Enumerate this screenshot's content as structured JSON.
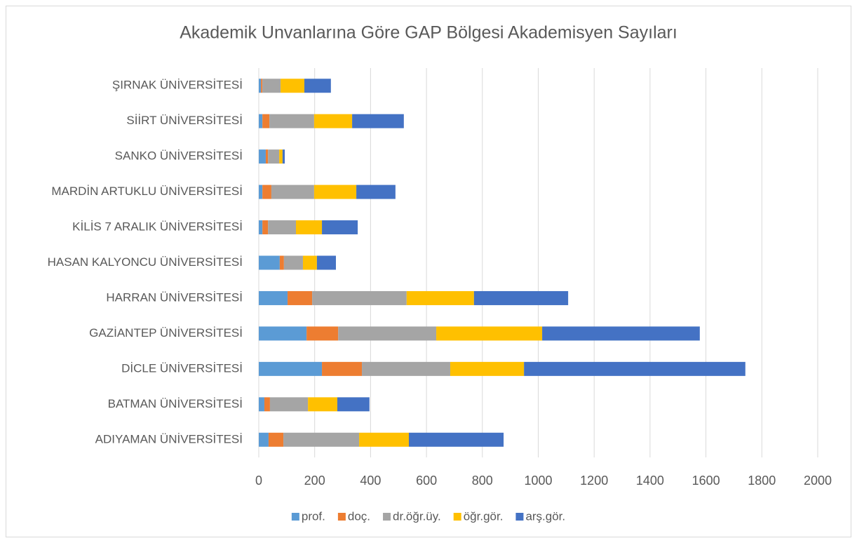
{
  "chart_data": {
    "type": "bar",
    "orientation": "horizontal",
    "stacked": true,
    "title": "Akademik Unvanlarına Göre GAP Bölgesi Akademisyen Sayıları",
    "categories": [
      "ADIYAMAN ÜNİVERSİTESİ",
      "BATMAN ÜNİVERSİTESİ",
      "DİCLE ÜNİVERSİTESİ",
      "GAZİANTEP ÜNİVERSİTESİ",
      "HARRAN ÜNİVERSİTESİ",
      "HASAN KALYONCU ÜNİVERSİTESİ",
      "KİLİS 7 ARALIK ÜNİVERSİTESİ",
      "MARDİN ARTUKLU ÜNİVERSİTESİ",
      "SANKO ÜNİVERSİTESİ",
      "SİİRT ÜNİVERSİTESİ",
      "ŞIRNAK ÜNİVERSİTESİ"
    ],
    "series": [
      {
        "name": "prof.",
        "color": "#5b9bd5",
        "values": [
          35,
          20,
          226,
          171,
          103,
          75,
          13,
          13,
          25,
          13,
          8
        ]
      },
      {
        "name": "doç.",
        "color": "#ed7d31",
        "values": [
          53,
          20,
          143,
          113,
          88,
          15,
          20,
          32,
          8,
          25,
          5
        ]
      },
      {
        "name": "dr.öğr.üy.",
        "color": "#a5a5a5",
        "values": [
          271,
          136,
          316,
          351,
          338,
          68,
          100,
          153,
          40,
          160,
          65
        ]
      },
      {
        "name": "öğr.gör.",
        "color": "#ffc000",
        "values": [
          178,
          105,
          264,
          379,
          241,
          50,
          93,
          151,
          12,
          136,
          85
        ]
      },
      {
        "name": "arş.gör.",
        "color": "#4472c4",
        "values": [
          339,
          115,
          792,
          564,
          337,
          68,
          128,
          140,
          8,
          185,
          95
        ]
      }
    ],
    "xlim": [
      0,
      2000
    ],
    "xticks": [
      0,
      200,
      400,
      600,
      800,
      1000,
      1200,
      1400,
      1600,
      1800,
      2000
    ],
    "grid": true,
    "legend": "bottom"
  }
}
